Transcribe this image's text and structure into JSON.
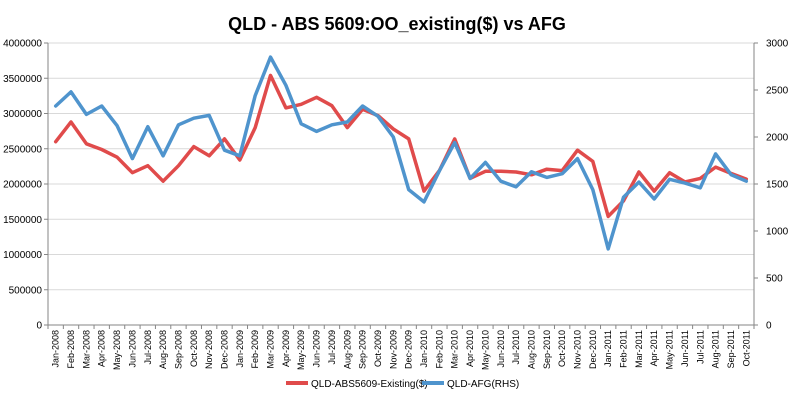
{
  "chart_data": {
    "type": "line",
    "title": "QLD - ABS 5609:OO_existing($) vs AFG",
    "xlabel": "",
    "ylabel": "",
    "ylim": [
      0,
      4000000
    ],
    "y2lim": [
      0,
      3000
    ],
    "yticks": [
      "0",
      "500000",
      "1000000",
      "1500000",
      "2000000",
      "2500000",
      "3000000",
      "3500000",
      "4000000"
    ],
    "y2ticks": [
      "0",
      "500",
      "1000",
      "1500",
      "2000",
      "2500",
      "3000"
    ],
    "categories": [
      "Jan-2008",
      "Feb-2008",
      "Mar-2008",
      "Apr-2008",
      "May-2008",
      "Jun-2008",
      "Jul-2008",
      "Aug-2008",
      "Sep-2008",
      "Oct-2008",
      "Nov-2008",
      "Dec-2008",
      "Jan-2009",
      "Feb-2009",
      "Mar-2009",
      "Apr-2009",
      "May-2009",
      "Jun-2009",
      "Jul-2009",
      "Aug-2009",
      "Sep-2009",
      "Oct-2009",
      "Nov-2009",
      "Dec-2009",
      "Jan-2010",
      "Feb-2010",
      "Mar-2010",
      "Apr-2010",
      "May-2010",
      "Jun-2010",
      "Jul-2010",
      "Aug-2010",
      "Sep-2010",
      "Oct-2010",
      "Nov-2010",
      "Dec-2010",
      "Jan-2011",
      "Feb-2011",
      "Mar-2011",
      "Apr-2011",
      "May-2011",
      "Jun-2011",
      "Jul-2011",
      "Aug-2011",
      "Sep-2011",
      "Oct-2011"
    ],
    "series": [
      {
        "name": "QLD-ABS5609-Existing($)",
        "axis": "left",
        "color": "#e04b4b",
        "values": [
          2600000,
          2880000,
          2570000,
          2490000,
          2380000,
          2160000,
          2260000,
          2040000,
          2260000,
          2530000,
          2400000,
          2640000,
          2340000,
          2800000,
          3540000,
          3080000,
          3130000,
          3230000,
          3110000,
          2800000,
          3060000,
          2970000,
          2780000,
          2640000,
          1900000,
          2190000,
          2640000,
          2080000,
          2180000,
          2180000,
          2170000,
          2130000,
          2210000,
          2190000,
          2480000,
          2320000,
          1540000,
          1760000,
          2170000,
          1900000,
          2160000,
          2030000,
          2080000,
          2240000,
          2150000,
          2070000
        ]
      },
      {
        "name": "QLD-AFG(RHS)",
        "axis": "right",
        "color": "#4f94cd",
        "values": [
          2330,
          2480,
          2240,
          2330,
          2120,
          1770,
          2110,
          1800,
          2130,
          2200,
          2230,
          1860,
          1800,
          2440,
          2850,
          2550,
          2140,
          2060,
          2130,
          2160,
          2330,
          2220,
          2000,
          1440,
          1310,
          1640,
          1940,
          1560,
          1730,
          1530,
          1470,
          1630,
          1570,
          1610,
          1770,
          1440,
          810,
          1360,
          1520,
          1340,
          1550,
          1510,
          1460,
          1820,
          1600,
          1530
        ]
      }
    ]
  }
}
